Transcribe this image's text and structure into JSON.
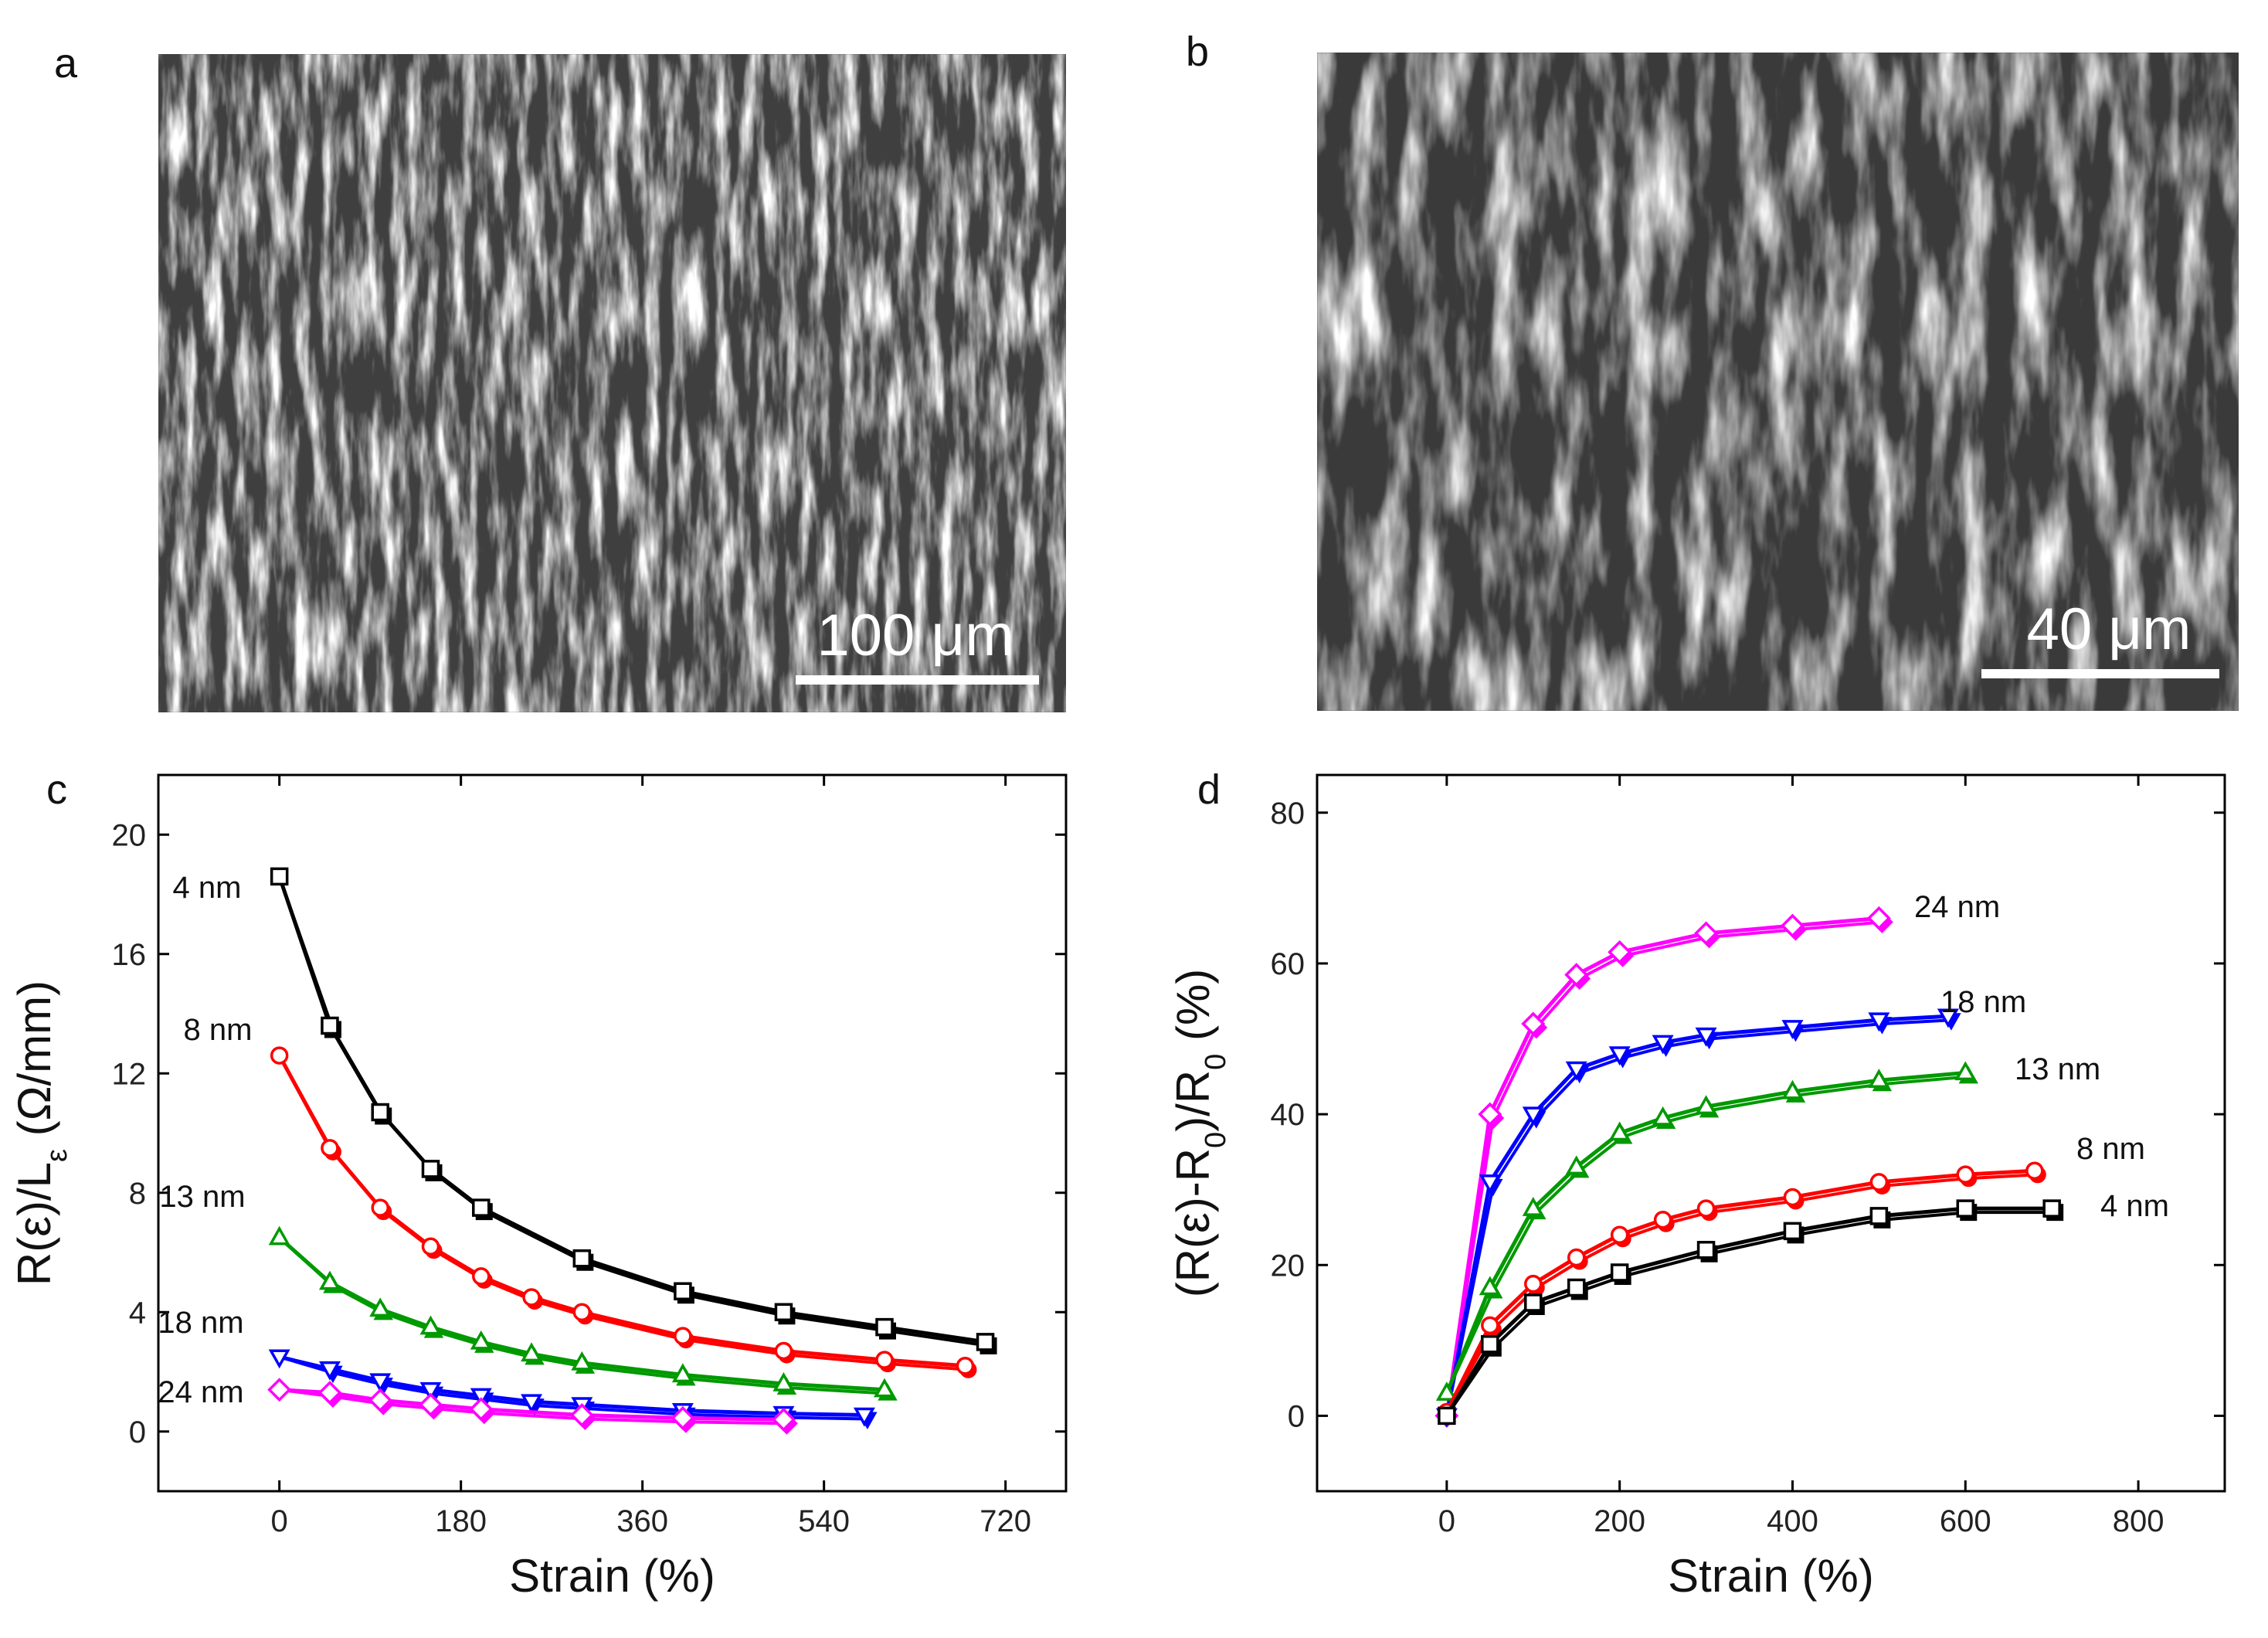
{
  "panels": {
    "a": {
      "letter": "a",
      "scale_bar": "100 μm"
    },
    "b": {
      "letter": "b",
      "scale_bar": "40 μm"
    },
    "c": {
      "letter": "c"
    },
    "d": {
      "letter": "d"
    }
  },
  "chart_data": [
    {
      "panel": "c",
      "type": "line",
      "title": "",
      "xlabel": "Strain (%)",
      "ylabel": "R(ε)/L_ε (Ω/mm)",
      "ylabel_parts": {
        "pre": "R(ε)/L",
        "sub": "ε",
        "post": " (Ω/mm)"
      },
      "xlim": [
        -120,
        780
      ],
      "ylim": [
        -2,
        22
      ],
      "xticks": [
        0,
        180,
        360,
        540,
        720
      ],
      "yticks": [
        0,
        4,
        8,
        12,
        16,
        20
      ],
      "grid": false,
      "series": [
        {
          "name": "4 nm",
          "color": "#000000",
          "marker": "square",
          "x": [
            0,
            50,
            100,
            150,
            200,
            300,
            400,
            500,
            600,
            700
          ],
          "y": [
            18.6,
            13.6,
            10.7,
            8.8,
            7.5,
            5.8,
            4.7,
            4.0,
            3.5,
            3.0
          ]
        },
        {
          "name": "8 nm",
          "color": "#ff0000",
          "marker": "circle",
          "x": [
            0,
            50,
            100,
            150,
            200,
            250,
            300,
            400,
            500,
            600,
            680
          ],
          "y": [
            12.6,
            9.5,
            7.5,
            6.2,
            5.2,
            4.5,
            4.0,
            3.2,
            2.7,
            2.4,
            2.2
          ]
        },
        {
          "name": "13 nm",
          "color": "#009900",
          "marker": "triangle-up",
          "x": [
            0,
            50,
            100,
            150,
            200,
            250,
            300,
            400,
            500,
            600
          ],
          "y": [
            6.5,
            5.0,
            4.1,
            3.5,
            3.0,
            2.6,
            2.3,
            1.9,
            1.6,
            1.4
          ]
        },
        {
          "name": "18 nm",
          "color": "#0000ff",
          "marker": "triangle-down",
          "x": [
            0,
            50,
            100,
            150,
            200,
            250,
            300,
            400,
            500,
            580
          ],
          "y": [
            2.5,
            2.1,
            1.7,
            1.4,
            1.2,
            1.0,
            0.9,
            0.7,
            0.6,
            0.55
          ]
        },
        {
          "name": "24 nm",
          "color": "#ff00ff",
          "marker": "diamond",
          "x": [
            0,
            50,
            100,
            150,
            200,
            300,
            400,
            500
          ],
          "y": [
            1.4,
            1.3,
            1.05,
            0.9,
            0.75,
            0.55,
            0.45,
            0.4
          ]
        }
      ]
    },
    {
      "panel": "d",
      "type": "line",
      "title": "",
      "xlabel": "Strain (%)",
      "ylabel": "(R(ε)-R0)/R0 (%)",
      "ylabel_parts": {
        "a": "(R(ε)-R",
        "b": "0",
        "c": ")/R",
        "d": "0",
        "e": " (%)"
      },
      "xlim": [
        -150,
        900
      ],
      "ylim": [
        -10,
        85
      ],
      "xticks": [
        0,
        200,
        400,
        600,
        800
      ],
      "yticks": [
        0,
        20,
        40,
        60,
        80
      ],
      "grid": false,
      "series": [
        {
          "name": "24 nm",
          "color": "#ff00ff",
          "marker": "diamond",
          "x": [
            0,
            50,
            100,
            150,
            200,
            300,
            400,
            500
          ],
          "y": [
            0,
            40,
            52,
            58.5,
            61.5,
            64,
            65,
            66
          ]
        },
        {
          "name": "18 nm",
          "color": "#0000ff",
          "marker": "triangle-down",
          "x": [
            0,
            50,
            100,
            150,
            200,
            250,
            300,
            400,
            500,
            580
          ],
          "y": [
            0,
            31,
            40,
            46,
            48,
            49.5,
            50.5,
            51.5,
            52.5,
            53
          ]
        },
        {
          "name": "13 nm",
          "color": "#009900",
          "marker": "triangle-up",
          "x": [
            0,
            50,
            100,
            150,
            200,
            250,
            300,
            400,
            500,
            600
          ],
          "y": [
            3,
            17,
            27.5,
            33,
            37.5,
            39.5,
            41,
            43,
            44.5,
            45.5
          ]
        },
        {
          "name": "8 nm",
          "color": "#ff0000",
          "marker": "circle",
          "x": [
            0,
            50,
            100,
            150,
            200,
            250,
            300,
            400,
            500,
            600,
            680
          ],
          "y": [
            0.5,
            12,
            17.5,
            21,
            24,
            26,
            27.5,
            29,
            31,
            32,
            32.5
          ]
        },
        {
          "name": "4 nm",
          "color": "#000000",
          "marker": "square",
          "x": [
            0,
            50,
            100,
            150,
            200,
            300,
            400,
            500,
            600,
            700
          ],
          "y": [
            0,
            9.5,
            15,
            17,
            19,
            22,
            24.5,
            26.5,
            27.5,
            27.5
          ]
        }
      ]
    }
  ]
}
